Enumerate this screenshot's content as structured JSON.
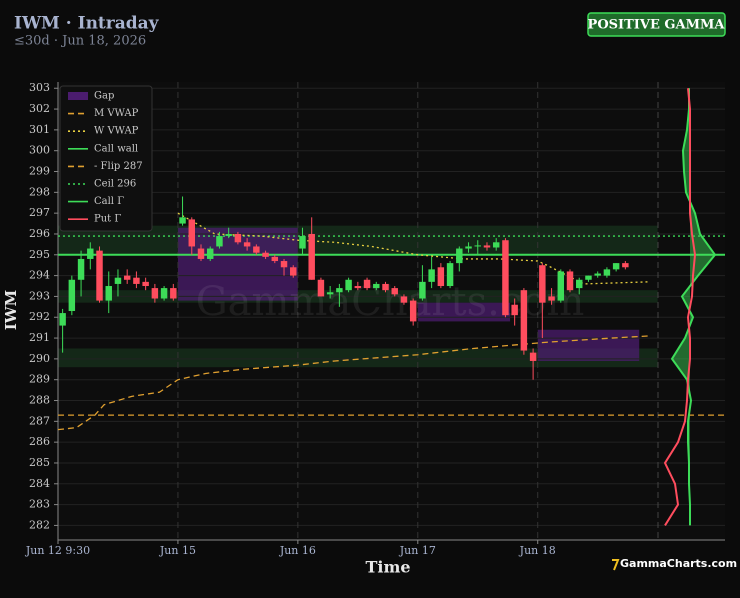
{
  "chart_data": {
    "type": "candlestick",
    "title": "IWM · Intraday",
    "subtitle": "≤30d · Jun 18, 2026",
    "badge": "POSITIVE GAMMA",
    "xlabel": "Time",
    "ylabel": "IWM",
    "watermark": "GammaCharts.com",
    "logo": "GammaCharts.com",
    "grid": true,
    "ylim": [
      281.3,
      303.3
    ],
    "yticks": [
      282,
      283,
      284,
      285,
      286,
      287,
      288,
      289,
      290,
      291,
      292,
      293,
      294,
      295,
      296,
      297,
      298,
      299,
      300,
      301,
      302,
      303
    ],
    "xlim": [
      0,
      72.3
    ],
    "xticks": [
      {
        "value": 0,
        "label": "Jun 12 9:30"
      },
      {
        "value": 13,
        "label": "Jun 15"
      },
      {
        "value": 26,
        "label": "Jun 16"
      },
      {
        "value": 39,
        "label": "Jun 17"
      },
      {
        "value": 52,
        "label": "Jun 18"
      }
    ],
    "up_color": "#3ddc58",
    "down_color": "#ff4d5e",
    "ohlc": {
      "open": [
        291.6,
        292.3,
        293.8,
        294.8,
        295.2,
        292.8,
        293.6,
        294.0,
        293.9,
        293.7,
        293.4,
        292.9,
        293.4,
        296.5,
        296.7,
        295.3,
        294.8,
        295.4,
        295.9,
        296.0,
        295.6,
        295.4,
        295.1,
        294.9,
        294.7,
        294.4,
        295.3,
        296.0,
        293.8,
        293.1,
        293.2,
        293.3,
        293.5,
        293.8,
        293.4,
        293.6,
        293.4,
        293.0,
        292.8,
        292.9,
        293.7,
        294.4,
        293.5,
        294.6,
        295.3,
        295.4,
        295.45,
        295.35,
        295.7,
        292.6,
        293.3,
        290.3,
        294.5,
        293.0,
        292.8,
        294.2,
        293.4,
        293.8,
        294.0,
        294.0,
        294.3,
        294.6
      ],
      "high": [
        292.4,
        294.0,
        295.2,
        295.6,
        295.4,
        294.2,
        294.3,
        294.3,
        294.2,
        293.9,
        293.6,
        293.5,
        293.6,
        297.8,
        296.8,
        295.5,
        295.4,
        296.1,
        296.3,
        296.1,
        295.8,
        295.5,
        295.2,
        295.0,
        294.8,
        294.5,
        296.3,
        296.8,
        293.9,
        293.5,
        293.6,
        293.9,
        293.7,
        293.9,
        293.7,
        293.7,
        293.5,
        293.1,
        292.9,
        294.5,
        294.9,
        294.6,
        294.7,
        295.4,
        295.6,
        295.7,
        295.6,
        295.8,
        295.8,
        292.9,
        293.4,
        290.5,
        294.6,
        293.4,
        294.3,
        294.3,
        293.9,
        294.0,
        294.2,
        294.4,
        294.6,
        294.7
      ],
      "low": [
        290.3,
        292.1,
        293.0,
        294.3,
        292.7,
        292.2,
        293.0,
        293.6,
        293.4,
        293.3,
        292.7,
        292.8,
        292.8,
        296.4,
        295.0,
        294.7,
        294.7,
        295.3,
        295.8,
        295.5,
        295.2,
        295.0,
        294.8,
        294.6,
        294.0,
        293.9,
        295.0,
        293.8,
        293.0,
        292.9,
        292.5,
        293.2,
        293.3,
        293.3,
        293.3,
        293.2,
        293.0,
        292.6,
        291.6,
        292.8,
        293.4,
        293.4,
        293.4,
        294.2,
        295.1,
        295.0,
        295.2,
        295.2,
        292.0,
        291.6,
        290.2,
        289.0,
        291.0,
        292.6,
        292.7,
        293.2,
        293.1,
        293.7,
        293.9,
        293.9,
        294.2,
        294.3
      ],
      "close": [
        292.2,
        293.8,
        294.8,
        295.3,
        292.8,
        293.5,
        293.9,
        293.8,
        293.6,
        293.5,
        292.9,
        293.4,
        292.9,
        296.8,
        295.4,
        294.8,
        295.3,
        295.9,
        296.0,
        295.6,
        295.4,
        295.1,
        294.9,
        294.7,
        294.4,
        294.0,
        295.9,
        293.8,
        293.0,
        293.2,
        293.4,
        293.8,
        293.4,
        293.4,
        293.6,
        293.3,
        293.1,
        292.7,
        291.8,
        293.7,
        294.3,
        293.5,
        294.6,
        295.3,
        295.4,
        295.45,
        295.35,
        295.6,
        292.1,
        292.1,
        290.4,
        289.9,
        292.7,
        292.8,
        294.2,
        293.3,
        293.8,
        294.0,
        294.1,
        294.3,
        294.6,
        294.4
      ]
    },
    "gap": {
      "name": "Gap",
      "color": "#4b1c6e",
      "zones": [
        {
          "x": [
            13,
            26
          ],
          "y": [
            292.8,
            296.3
          ]
        },
        {
          "x": [
            39,
            49
          ],
          "y": [
            291.8,
            292.7
          ]
        },
        {
          "x": [
            52,
            63
          ],
          "y": [
            289.9,
            291.4
          ]
        }
      ]
    },
    "bands": {
      "color": "#16301c",
      "zones": [
        {
          "x": [
            0,
            65
          ],
          "y": [
            295.0,
            296.4
          ]
        },
        {
          "x": [
            0,
            65
          ],
          "y": [
            292.7,
            293.3
          ]
        },
        {
          "x": [
            0,
            65
          ],
          "y": [
            289.6,
            290.5
          ]
        }
      ]
    },
    "series": [
      {
        "name": "M VWAP",
        "color": "#e0a030",
        "style": "dashed",
        "x": [
          0,
          2,
          4,
          5,
          8,
          11,
          13,
          16,
          20,
          26,
          30,
          39,
          45,
          53,
          60,
          64
        ],
        "values": [
          286.6,
          286.7,
          287.3,
          287.8,
          288.2,
          288.4,
          289.0,
          289.3,
          289.5,
          289.7,
          289.9,
          290.2,
          290.5,
          290.8,
          291.0,
          291.1
        ]
      },
      {
        "name": "W VWAP",
        "color": "#e8d040",
        "style": "dotted",
        "x": [
          13,
          17,
          22,
          26,
          30,
          34,
          39,
          44,
          48,
          52,
          53,
          57,
          64
        ],
        "values": [
          297.0,
          296.0,
          295.9,
          295.7,
          295.6,
          295.4,
          295.0,
          294.8,
          294.8,
          294.7,
          294.5,
          293.6,
          293.7
        ]
      }
    ],
    "levels": [
      {
        "name": "Call wall",
        "value": 295,
        "color": "#3ddc58",
        "style": "solid"
      },
      {
        "name": "- Flip 287",
        "value": 287.3,
        "color": "#e0a030",
        "style": "dashed"
      },
      {
        "name": "Ceil 296",
        "value": 295.9,
        "color": "#3ddc58",
        "style": "dotted"
      }
    ],
    "profile": {
      "strikes": [
        282,
        283,
        284,
        285,
        286,
        287,
        288,
        289,
        290,
        291,
        292,
        293,
        294,
        295,
        296,
        297,
        298,
        299,
        300,
        301,
        302,
        303
      ],
      "series": [
        {
          "name": "Call Γ",
          "color": "#3ddc58",
          "style": "solid",
          "values": [
            0,
            0,
            -1,
            -1,
            -2,
            -2,
            1,
            -3,
            -18,
            -5,
            3,
            -8,
            8,
            25,
            10,
            5,
            -4,
            -6,
            -7,
            -3,
            -1,
            -1
          ]
        },
        {
          "name": "Put Γ",
          "color": "#ff4d5e",
          "style": "solid",
          "values": [
            -25,
            -12,
            -15,
            -25,
            -12,
            -5,
            -3,
            -2,
            0,
            0,
            -2,
            2,
            3,
            5,
            2,
            0,
            0,
            0,
            0,
            0,
            0,
            -2
          ]
        }
      ]
    }
  }
}
